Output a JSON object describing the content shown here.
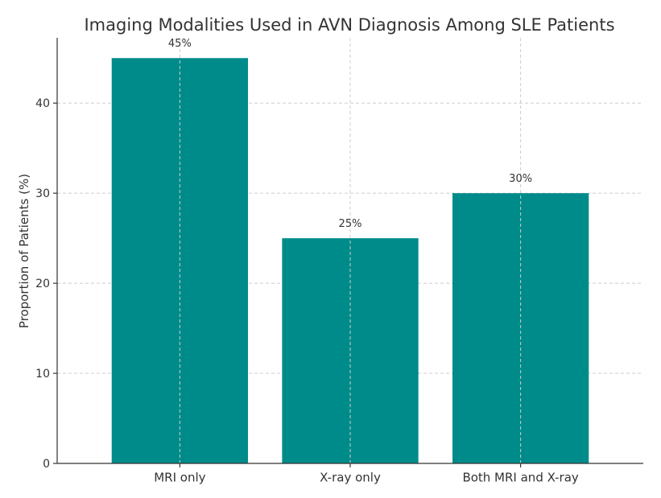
{
  "chart_data": {
    "type": "bar",
    "title": "Imaging Modalities Used in AVN Diagnosis Among SLE Patients",
    "xlabel": "",
    "ylabel": "Proportion of Patients (%)",
    "categories": [
      "MRI only",
      "X-ray only",
      "Both MRI and X-ray"
    ],
    "values": [
      45,
      25,
      30
    ],
    "data_labels": [
      "45%",
      "25%",
      "30%"
    ],
    "ylim": [
      0,
      47.25
    ],
    "yticks": [
      0,
      10,
      20,
      30,
      40
    ],
    "bar_color": "#008b8b",
    "grid": true,
    "legend": "none"
  }
}
